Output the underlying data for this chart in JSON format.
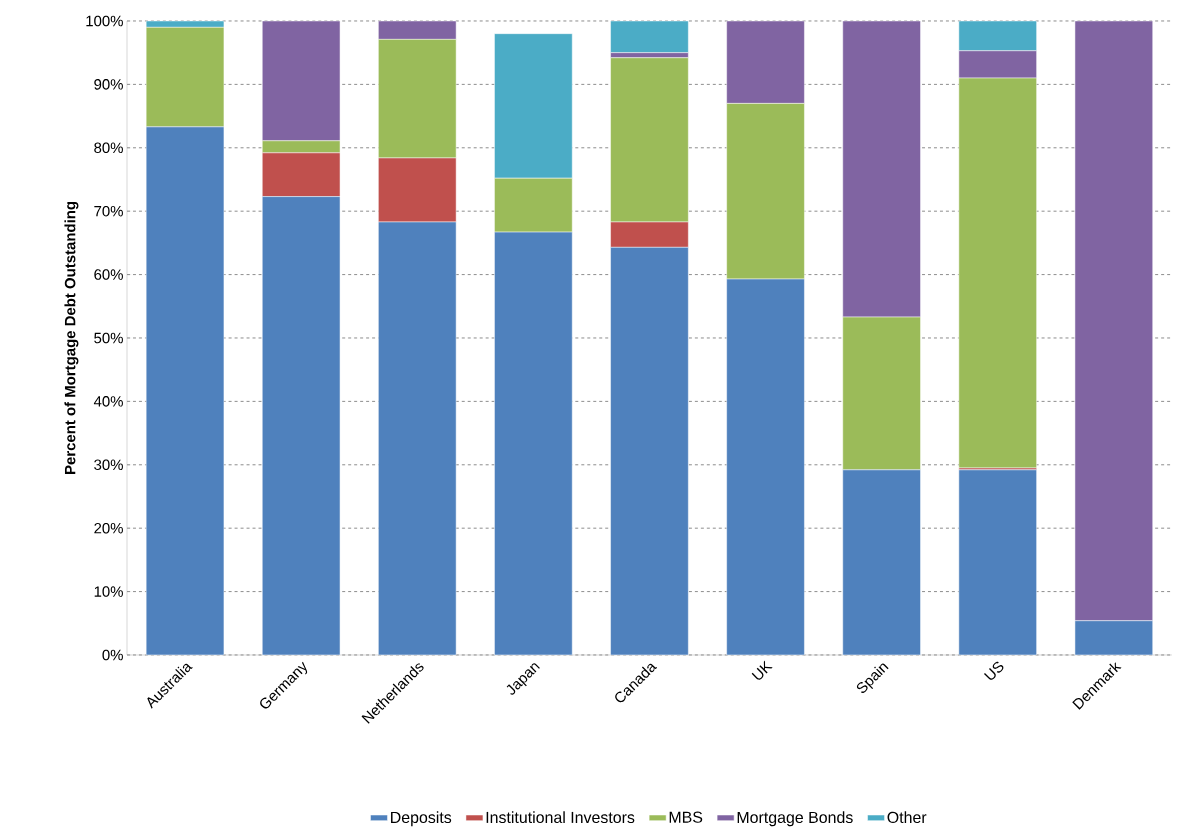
{
  "chart_data": {
    "type": "bar",
    "stacked": true,
    "ylabel": "Percent of Mortgage Debt Outstanding",
    "categories": [
      "Australia",
      "Germany",
      "Netherlands",
      "Japan",
      "Canada",
      "UK",
      "Spain",
      "US",
      "Denmark"
    ],
    "series": [
      {
        "name": "Deposits",
        "color": "#4f81bd",
        "values": [
          83.3,
          72.3,
          68.3,
          66.7,
          64.3,
          59.3,
          29.2,
          29.2,
          5.4
        ]
      },
      {
        "name": "Institutional Investors",
        "color": "#c0504d",
        "values": [
          0,
          6.9,
          10.1,
          0,
          4.0,
          0,
          0,
          0.3,
          0
        ]
      },
      {
        "name": "MBS",
        "color": "#9bbb59",
        "values": [
          15.7,
          1.9,
          18.7,
          8.5,
          25.9,
          27.7,
          24.1,
          61.5,
          0
        ]
      },
      {
        "name": "Mortgage Bonds",
        "color": "#8064a2",
        "values": [
          0,
          18.9,
          2.9,
          0,
          0.8,
          13.0,
          46.7,
          4.3,
          94.6
        ]
      },
      {
        "name": "Other",
        "color": "#4bacc6",
        "values": [
          1.0,
          0,
          0,
          22.8,
          5.0,
          0,
          0,
          4.7,
          0
        ]
      }
    ],
    "ylim": [
      0,
      100
    ],
    "yticks": [
      {
        "value": 0,
        "label": "0%"
      },
      {
        "value": 10,
        "label": "10%"
      },
      {
        "value": 20,
        "label": "20%"
      },
      {
        "value": 30,
        "label": "30%"
      },
      {
        "value": 40,
        "label": "40%"
      },
      {
        "value": 50,
        "label": "50%"
      },
      {
        "value": 60,
        "label": "60%"
      },
      {
        "value": 70,
        "label": "70%"
      },
      {
        "value": 80,
        "label": "80%"
      },
      {
        "value": 90,
        "label": "90%"
      },
      {
        "value": 100,
        "label": "100%"
      }
    ],
    "grid": "y",
    "legend": "bottom"
  }
}
